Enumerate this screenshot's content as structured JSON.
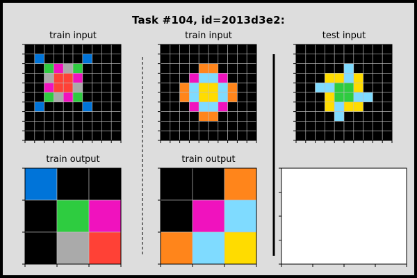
{
  "title": "Task #104, id=2013d3e2:",
  "labels": {
    "train_input_1": "train input",
    "train_input_2": "train input",
    "test_input": "test input",
    "train_output_1": "train output",
    "train_output_2": "train output"
  },
  "palette": {
    "0": "#000000",
    "1": "#0074d9",
    "2": "#ff4136",
    "3": "#2ecc40",
    "4": "#ffdc00",
    "5": "#aaaaaa",
    "6": "#f012be",
    "7": "#ff851b",
    "8": "#7fdbff",
    "9": "#870c25"
  },
  "grids": {
    "train_input_1": [
      [
        0,
        0,
        0,
        0,
        0,
        0,
        0,
        0,
        0,
        0
      ],
      [
        0,
        1,
        0,
        0,
        0,
        0,
        1,
        0,
        0,
        0
      ],
      [
        0,
        0,
        3,
        6,
        5,
        3,
        0,
        0,
        0,
        0
      ],
      [
        0,
        0,
        5,
        2,
        2,
        6,
        0,
        0,
        0,
        0
      ],
      [
        0,
        0,
        6,
        2,
        2,
        5,
        0,
        0,
        0,
        0
      ],
      [
        0,
        0,
        3,
        5,
        6,
        3,
        0,
        0,
        0,
        0
      ],
      [
        0,
        1,
        0,
        0,
        0,
        0,
        1,
        0,
        0,
        0
      ],
      [
        0,
        0,
        0,
        0,
        0,
        0,
        0,
        0,
        0,
        0
      ],
      [
        0,
        0,
        0,
        0,
        0,
        0,
        0,
        0,
        0,
        0
      ],
      [
        0,
        0,
        0,
        0,
        0,
        0,
        0,
        0,
        0,
        0
      ]
    ],
    "train_output_1": [
      [
        1,
        0,
        0
      ],
      [
        0,
        3,
        6
      ],
      [
        0,
        5,
        2
      ]
    ],
    "train_input_2": [
      [
        0,
        0,
        0,
        0,
        0,
        0,
        0,
        0,
        0,
        0
      ],
      [
        0,
        0,
        0,
        0,
        0,
        0,
        0,
        0,
        0,
        0
      ],
      [
        0,
        0,
        0,
        0,
        7,
        7,
        0,
        0,
        0,
        0
      ],
      [
        0,
        0,
        0,
        6,
        8,
        8,
        6,
        0,
        0,
        0
      ],
      [
        0,
        0,
        7,
        8,
        4,
        4,
        8,
        7,
        0,
        0
      ],
      [
        0,
        0,
        7,
        8,
        4,
        4,
        8,
        7,
        0,
        0
      ],
      [
        0,
        0,
        0,
        6,
        8,
        8,
        6,
        0,
        0,
        0
      ],
      [
        0,
        0,
        0,
        0,
        7,
        7,
        0,
        0,
        0,
        0
      ],
      [
        0,
        0,
        0,
        0,
        0,
        0,
        0,
        0,
        0,
        0
      ],
      [
        0,
        0,
        0,
        0,
        0,
        0,
        0,
        0,
        0,
        0
      ]
    ],
    "train_output_2": [
      [
        0,
        0,
        7
      ],
      [
        0,
        6,
        8
      ],
      [
        7,
        8,
        4
      ]
    ],
    "test_input": [
      [
        0,
        0,
        0,
        0,
        0,
        0,
        0,
        0,
        0,
        0
      ],
      [
        0,
        0,
        0,
        0,
        0,
        0,
        0,
        0,
        0,
        0
      ],
      [
        0,
        0,
        0,
        0,
        0,
        8,
        0,
        0,
        0,
        0
      ],
      [
        0,
        0,
        0,
        4,
        4,
        8,
        4,
        0,
        0,
        0
      ],
      [
        0,
        0,
        8,
        8,
        3,
        3,
        4,
        0,
        0,
        0
      ],
      [
        0,
        0,
        0,
        4,
        3,
        3,
        8,
        8,
        0,
        0
      ],
      [
        0,
        0,
        0,
        4,
        8,
        4,
        4,
        0,
        0,
        0
      ],
      [
        0,
        0,
        0,
        0,
        8,
        0,
        0,
        0,
        0,
        0
      ],
      [
        0,
        0,
        0,
        0,
        0,
        0,
        0,
        0,
        0,
        0
      ],
      [
        0,
        0,
        0,
        0,
        0,
        0,
        0,
        0,
        0,
        0
      ]
    ]
  }
}
